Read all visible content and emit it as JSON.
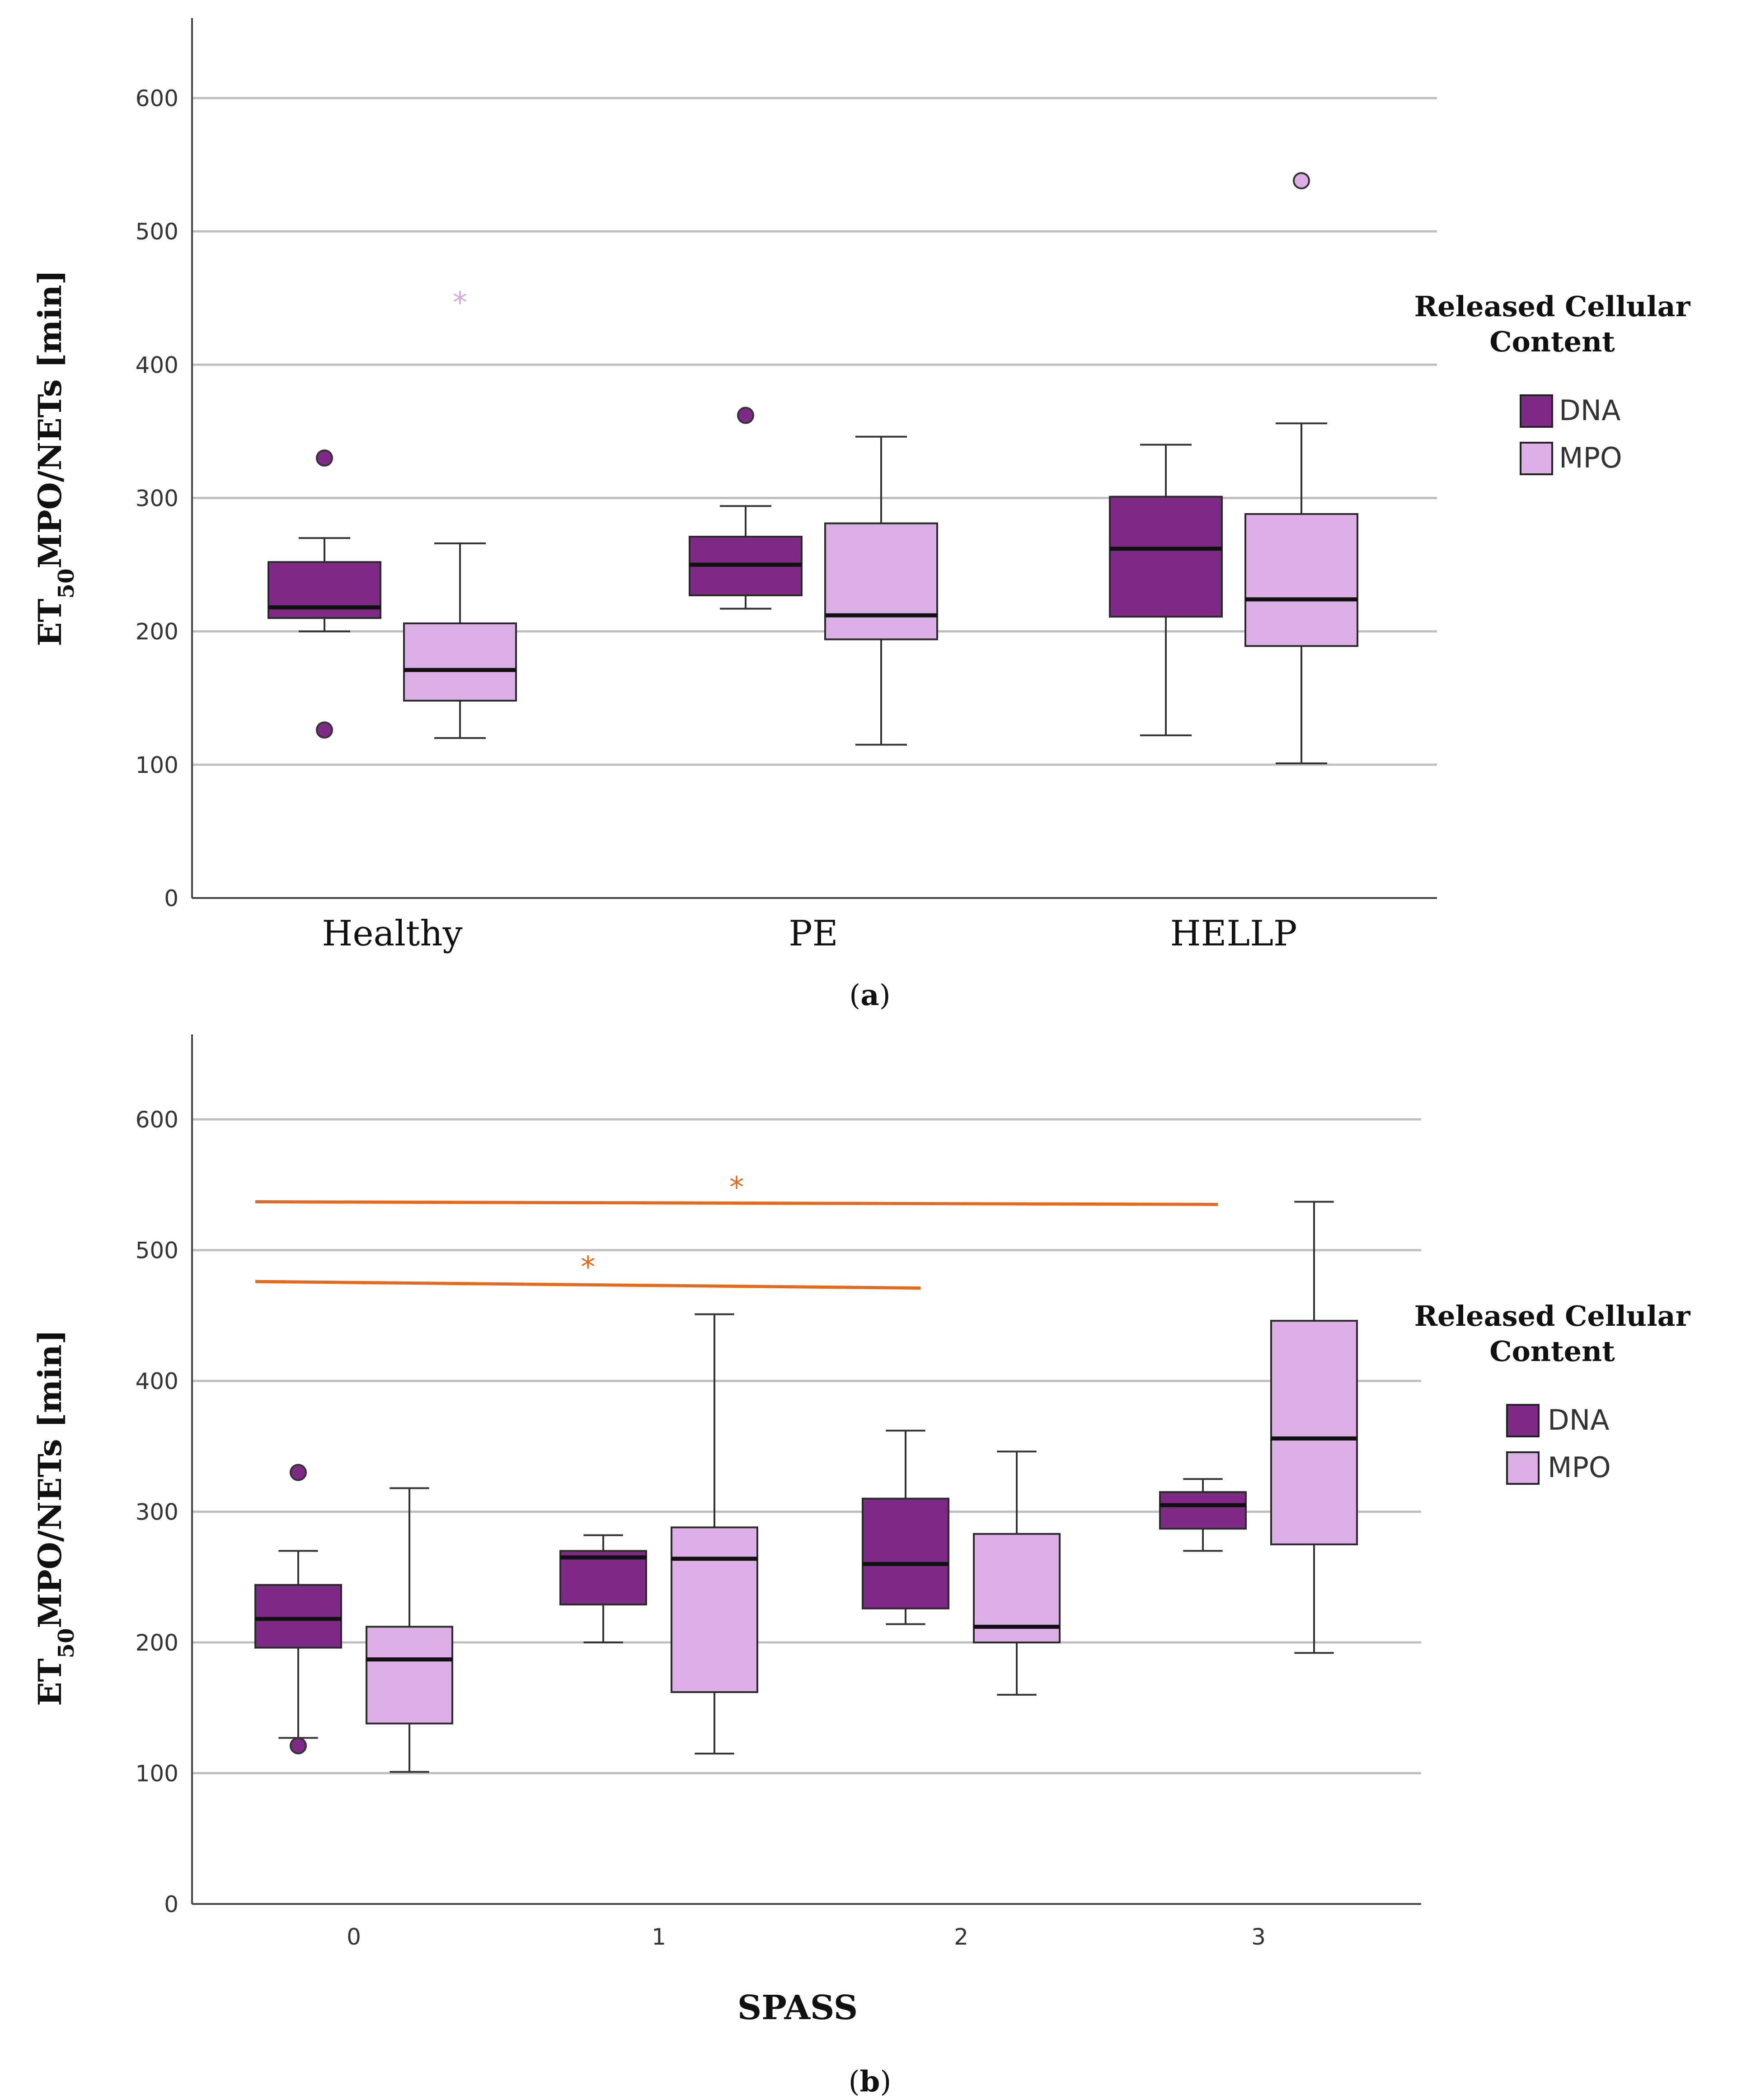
{
  "colors": {
    "DNA": "#7f2a86",
    "MPO": "#dcaee6",
    "grid": "#bfbfbf",
    "axis": "#444444",
    "significance": "#e36a1e",
    "outlier_star_a": "#d9a6e3"
  },
  "legend": {
    "title_line1": "Released Cellular",
    "title_line2": "Content",
    "items": [
      "DNA",
      "MPO"
    ]
  },
  "y_label": {
    "main": "ET",
    "sub": "50",
    "rest": "MPO/NETs [min]"
  },
  "chart_data": [
    {
      "type": "boxplot",
      "panel_label": "a",
      "xlabel": "",
      "ylim": [
        0,
        660
      ],
      "yticks": [
        "0",
        "100",
        "200",
        "300",
        "400",
        "500",
        "600"
      ],
      "categories": [
        "Healthy",
        "PE",
        "HELLP"
      ],
      "series": [
        {
          "name": "DNA",
          "boxes": [
            {
              "min": 200,
              "q1": 210,
              "median": 218,
              "q3": 252,
              "max": 270,
              "outliers": [
                {
                  "v": 330,
                  "kind": "circle"
                },
                {
                  "v": 126,
                  "kind": "circle"
                }
              ]
            },
            {
              "min": 217,
              "q1": 227,
              "median": 250,
              "q3": 271,
              "max": 294,
              "outliers": [
                {
                  "v": 362,
                  "kind": "circle"
                }
              ]
            },
            {
              "min": 122,
              "q1": 211,
              "median": 262,
              "q3": 301,
              "max": 340,
              "outliers": []
            }
          ]
        },
        {
          "name": "MPO",
          "boxes": [
            {
              "min": 120,
              "q1": 148,
              "median": 171,
              "q3": 206,
              "max": 266,
              "outliers": [
                {
                  "v": 450,
                  "kind": "star"
                }
              ]
            },
            {
              "min": 115,
              "q1": 194,
              "median": 212,
              "q3": 281,
              "max": 346,
              "outliers": []
            },
            {
              "min": 101,
              "q1": 189,
              "median": 224,
              "q3": 288,
              "max": 356,
              "outliers": [
                {
                  "v": 538,
                  "kind": "circle"
                }
              ]
            }
          ]
        }
      ]
    },
    {
      "type": "boxplot",
      "panel_label": "b",
      "xlabel": "SPASS",
      "ylim": [
        0,
        665
      ],
      "yticks": [
        "0",
        "100",
        "200",
        "300",
        "400",
        "500",
        "600"
      ],
      "categories": [
        "0",
        "1",
        "2",
        "3"
      ],
      "series": [
        {
          "name": "DNA",
          "boxes": [
            {
              "min": 127,
              "q1": 196,
              "median": 218,
              "q3": 244,
              "max": 270,
              "outliers": [
                {
                  "v": 330,
                  "kind": "circle"
                },
                {
                  "v": 121,
                  "kind": "circle"
                }
              ]
            },
            {
              "min": 200,
              "q1": 229,
              "median": 265,
              "q3": 270,
              "max": 282,
              "outliers": []
            },
            {
              "min": 214,
              "q1": 226,
              "median": 260,
              "q3": 310,
              "max": 362,
              "outliers": []
            },
            {
              "min": 270,
              "q1": 287,
              "median": 305,
              "q3": 315,
              "max": 325,
              "outliers": []
            }
          ]
        },
        {
          "name": "MPO",
          "boxes": [
            {
              "min": 101,
              "q1": 138,
              "median": 187,
              "q3": 212,
              "max": 318,
              "outliers": []
            },
            {
              "min": 115,
              "q1": 162,
              "median": 264,
              "q3": 288,
              "max": 451,
              "outliers": []
            },
            {
              "min": 160,
              "q1": 200,
              "median": 212,
              "q3": 283,
              "max": 346,
              "outliers": []
            },
            {
              "min": 192,
              "q1": 275,
              "median": 356,
              "q3": 446,
              "max": 537,
              "outliers": []
            }
          ]
        }
      ],
      "significance": [
        {
          "from_cat": 0,
          "to_cat": 3,
          "y_start": 537,
          "y_end": 535,
          "label": "*"
        },
        {
          "from_cat": 0,
          "to_cat": 2,
          "y_start": 476,
          "y_end": 471,
          "label": "*"
        }
      ]
    }
  ]
}
